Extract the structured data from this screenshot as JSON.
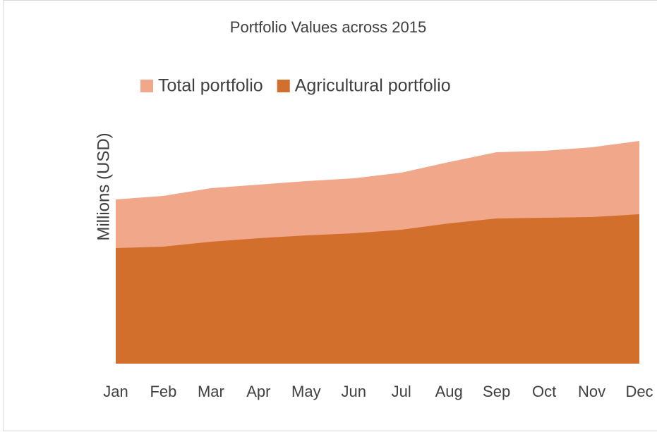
{
  "chart_data": {
    "type": "area",
    "title": "Portfolio Values across 2015",
    "y_label": "Millions (USD)",
    "categories": [
      "Jan",
      "Feb",
      "Mar",
      "Apr",
      "May",
      "Jun",
      "Jul",
      "Aug",
      "Sep",
      "Oct",
      "Nov",
      "Dec"
    ],
    "series": [
      {
        "name": "Total portfolio",
        "color": "#f1a78a",
        "values": [
          233,
          238,
          249,
          254,
          259,
          263,
          271,
          286,
          300,
          302,
          307,
          316
        ]
      },
      {
        "name": "Agricultural portfolio",
        "color": "#d36f2c",
        "values": [
          164,
          166,
          173,
          178,
          182,
          185,
          190,
          199,
          206,
          207,
          208,
          212
        ]
      }
    ],
    "ylim": [
      0,
      350
    ],
    "legend": "top",
    "grid": false
  }
}
